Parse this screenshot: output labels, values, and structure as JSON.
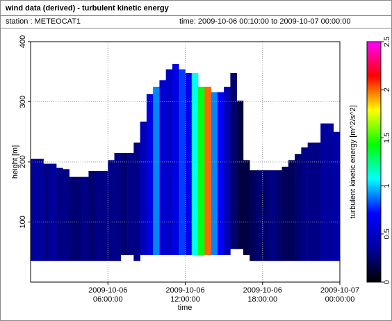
{
  "chart_data": {
    "type": "heatmap",
    "title": "wind data (derived) - turbulent kinetic energy",
    "station": "station : METEOCAT1",
    "time_range": "time: 2009-10-06 00:10:00 to 2009-10-07 00:00:00",
    "xlabel": "time",
    "ylabel": "height [m]",
    "colorbar_label": "turbulent kinetic energy [m^2/s^2]",
    "xlim": [
      0,
      24
    ],
    "xticks": [
      {
        "value": 6,
        "label": "2009-10-06 06:00:00"
      },
      {
        "value": 12,
        "label": "2009-10-06 12:00:00"
      },
      {
        "value": 18,
        "label": "2009-10-06 18:00:00"
      },
      {
        "value": 24,
        "label": "2009-10-07 00:00:00"
      }
    ],
    "ylim": [
      0,
      400
    ],
    "yticks": [
      100,
      200,
      300,
      400
    ],
    "clim": [
      0,
      2.5
    ],
    "cticks": [
      0,
      0.5,
      1,
      1.5,
      2,
      2.5
    ],
    "colormap": [
      "#000000",
      "#0000a0",
      "#0000ff",
      "#00ffff",
      "#00ff00",
      "#ffff00",
      "#ff0000",
      "#ff00ff"
    ],
    "grid": true,
    "x": [
      0,
      0.5,
      1,
      1.5,
      2,
      2.5,
      3,
      3.5,
      4,
      4.5,
      5,
      5.5,
      6,
      6.5,
      7,
      7.5,
      8,
      8.5,
      9,
      9.5,
      10,
      10.5,
      11,
      11.5,
      12,
      12.5,
      13,
      13.5,
      14,
      14.5,
      15,
      15.5,
      16,
      16.5,
      17,
      17.5,
      18,
      18.5,
      19,
      19.5,
      20,
      20.5,
      21,
      21.5,
      22,
      22.5,
      23,
      23.5
    ],
    "bottom": [
      35,
      35,
      35,
      35,
      35,
      35,
      35,
      35,
      35,
      35,
      35,
      35,
      35,
      35,
      45,
      45,
      35,
      45,
      45,
      45,
      45,
      45,
      45,
      45,
      45,
      45,
      45,
      45,
      45,
      45,
      45,
      55,
      55,
      45,
      35,
      35,
      35,
      35,
      35,
      35,
      35,
      35,
      35,
      35,
      35,
      35,
      35,
      35
    ],
    "top": [
      205,
      205,
      197,
      197,
      190,
      188,
      175,
      175,
      175,
      185,
      185,
      185,
      203,
      215,
      215,
      215,
      232,
      267,
      313,
      325,
      336,
      354,
      363,
      354,
      348,
      348,
      325,
      325,
      316,
      316,
      325,
      348,
      302,
      203,
      186,
      186,
      186,
      186,
      186,
      192,
      203,
      213,
      224,
      232,
      232,
      264,
      264,
      250
    ],
    "values": [
      0.35,
      0.35,
      0.3,
      0.35,
      0.3,
      0.3,
      0.25,
      0.25,
      0.3,
      0.25,
      0.3,
      0.3,
      0.3,
      0.3,
      0.25,
      0.3,
      0.3,
      0.45,
      0.6,
      0.9,
      0.55,
      0.5,
      0.6,
      0.8,
      0.65,
      1.1,
      1.4,
      2.0,
      0.9,
      0.7,
      0.45,
      0.25,
      0.15,
      0.15,
      0.2,
      0.25,
      0.25,
      0.3,
      0.25,
      0.2,
      0.2,
      0.25,
      0.3,
      0.3,
      0.3,
      0.35,
      0.35,
      0.4
    ]
  }
}
